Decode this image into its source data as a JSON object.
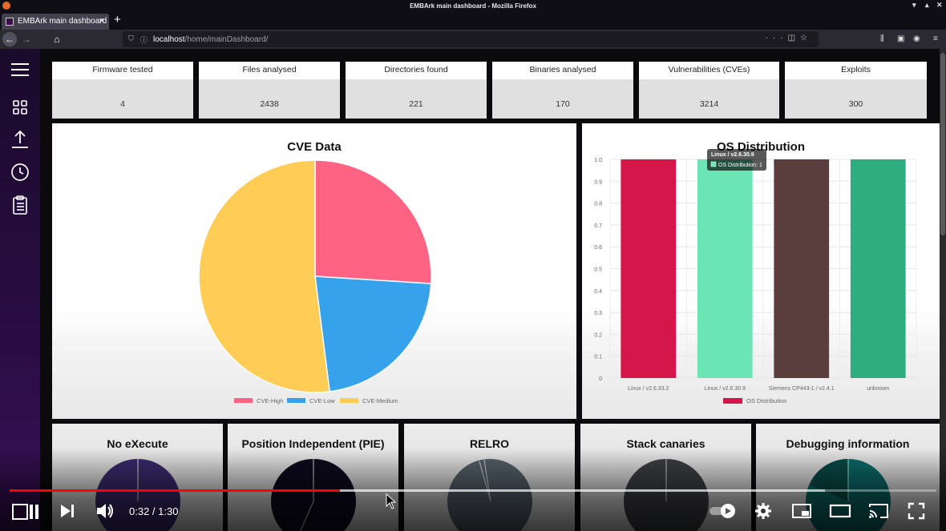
{
  "window": {
    "title": "EMBArk main dashboard - Mozilla Firefox"
  },
  "tab": {
    "label": "EMBArk main dashboard"
  },
  "urlbar": {
    "host": "localhost",
    "path": "/home/mainDashboard/"
  },
  "stats": [
    {
      "label": "Firmware tested",
      "value": "4"
    },
    {
      "label": "Files analysed",
      "value": "2438"
    },
    {
      "label": "Directories found",
      "value": "221"
    },
    {
      "label": "Binaries analysed",
      "value": "170"
    },
    {
      "label": "Vulnerabilities (CVEs)",
      "value": "3214"
    },
    {
      "label": "Exploits",
      "value": "300"
    }
  ],
  "cve_card": {
    "title": "CVE Data"
  },
  "os_card": {
    "title": "OS Distribution",
    "tooltip": {
      "title": "Linux / v2.6.30.9",
      "line": "OS Distribution: 1"
    }
  },
  "chart_data": [
    {
      "type": "pie",
      "title": "CVE Data",
      "labels": [
        "CVE-High",
        "CVE-Low",
        "CVE-Medium"
      ],
      "values": [
        0.26,
        0.22,
        0.52
      ],
      "colors": [
        "#ff6384",
        "#36a2eb",
        "#ffcd56"
      ],
      "legend": "bottom"
    },
    {
      "type": "bar",
      "title": "OS Distribution",
      "categories": [
        "Linux / v2.6.33.2",
        "Linux / v2.6.30.9",
        "Siemens CP443-1 / v2.4.1",
        "unknown"
      ],
      "series": [
        {
          "name": "OS Distribution",
          "values": [
            1,
            1,
            1,
            1
          ]
        }
      ],
      "bar_colors": [
        "#d4164a",
        "#6be5b5",
        "#5a3e3e",
        "#2eae80"
      ],
      "yticks": [
        "0",
        "0.1",
        "0.2",
        "0.3",
        "0.4",
        "0.5",
        "0.6",
        "0.7",
        "0.8",
        "0.9",
        "1.0"
      ],
      "ylim": [
        0,
        1
      ],
      "grid": true,
      "legend": "bottom"
    }
  ],
  "small_cards": [
    {
      "title": "No eXecute",
      "color": "#3a2a6e",
      "divider": "#cfcfcf"
    },
    {
      "title": "Position Independent (PIE)",
      "color": "#0d0a1e",
      "divider": "#bfbfbf"
    },
    {
      "title": "RELRO",
      "color": "#56616b",
      "divider": "#bfbfbf"
    },
    {
      "title": "Stack canaries",
      "color": "#3d3f44",
      "divider": "#bfbfbf"
    },
    {
      "title": "Debugging information",
      "color": "#0b6b69",
      "divider": "#bfbfbf"
    }
  ],
  "video": {
    "time": "0:32 / 1:30",
    "progress": 0.356,
    "buffered": 0.88
  },
  "sidebar_icons": [
    "menu-icon",
    "grid-icon",
    "upload-icon",
    "clock-icon",
    "clipboard-icon"
  ]
}
